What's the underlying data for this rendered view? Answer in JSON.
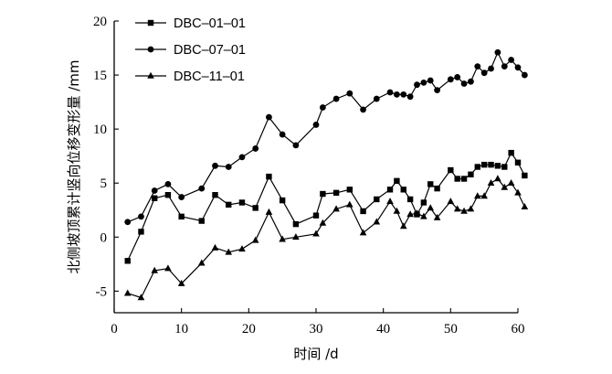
{
  "chart_data": {
    "type": "line",
    "xlabel": "时间 /d",
    "ylabel": "北侧坡顶累计竖向位移变形量 /mm",
    "xlim": [
      0,
      60
    ],
    "ylim": [
      -7,
      20
    ],
    "xticks": [
      0,
      10,
      20,
      30,
      40,
      50,
      60
    ],
    "yticks": [
      -5,
      0,
      5,
      10,
      15,
      20
    ],
    "grid": false,
    "legend_position": "top-left",
    "series": [
      {
        "name": "DBC–01–01",
        "marker": "square",
        "x": [
          2,
          4,
          6,
          8,
          10,
          13,
          15,
          17,
          19,
          21,
          23,
          25,
          27,
          30,
          31,
          33,
          35,
          37,
          39,
          41,
          42,
          43,
          44,
          45,
          46,
          47,
          48,
          50,
          51,
          52,
          53,
          54,
          55,
          56,
          57,
          58,
          59,
          60,
          61
        ],
        "values": [
          -2.2,
          0.5,
          3.6,
          3.9,
          1.9,
          1.5,
          3.9,
          3.0,
          3.2,
          2.7,
          5.6,
          3.4,
          1.2,
          2.0,
          4.0,
          4.1,
          4.4,
          2.4,
          3.5,
          4.4,
          5.2,
          4.4,
          3.5,
          2.1,
          3.2,
          4.9,
          4.5,
          6.2,
          5.4,
          5.4,
          5.8,
          6.5,
          6.7,
          6.7,
          6.6,
          6.5,
          7.8,
          6.9,
          5.7
        ]
      },
      {
        "name": "DBC–07–01",
        "marker": "circle",
        "x": [
          2,
          4,
          6,
          8,
          10,
          13,
          15,
          17,
          19,
          21,
          23,
          25,
          27,
          30,
          31,
          33,
          35,
          37,
          39,
          41,
          42,
          43,
          44,
          45,
          46,
          47,
          48,
          50,
          51,
          52,
          53,
          54,
          55,
          56,
          57,
          58,
          59,
          60,
          61
        ],
        "values": [
          1.4,
          1.9,
          4.3,
          4.9,
          3.7,
          4.5,
          6.6,
          6.5,
          7.4,
          8.2,
          11.1,
          9.5,
          8.5,
          10.4,
          12.0,
          12.8,
          13.3,
          11.8,
          12.8,
          13.4,
          13.2,
          13.2,
          13.0,
          14.1,
          14.3,
          14.5,
          13.6,
          14.6,
          14.8,
          14.2,
          14.4,
          15.8,
          15.2,
          15.6,
          17.1,
          15.8,
          16.4,
          15.7,
          15.0
        ]
      },
      {
        "name": "DBC–11–01",
        "marker": "triangle",
        "x": [
          2,
          4,
          6,
          8,
          10,
          13,
          15,
          17,
          19,
          21,
          23,
          25,
          27,
          30,
          31,
          33,
          35,
          37,
          39,
          41,
          42,
          43,
          44,
          45,
          46,
          47,
          48,
          50,
          51,
          52,
          53,
          54,
          55,
          56,
          57,
          58,
          59,
          60,
          61
        ],
        "values": [
          -5.2,
          -5.6,
          -3.1,
          -2.9,
          -4.3,
          -2.4,
          -1.0,
          -1.4,
          -1.1,
          -0.3,
          2.3,
          -0.2,
          0.0,
          0.3,
          1.3,
          2.6,
          3.0,
          0.4,
          1.4,
          3.3,
          2.4,
          1.0,
          2.1,
          2.2,
          1.9,
          2.7,
          1.8,
          3.3,
          2.6,
          2.4,
          2.6,
          3.8,
          3.8,
          5.0,
          5.4,
          4.6,
          5.0,
          4.1,
          2.8
        ]
      }
    ]
  }
}
